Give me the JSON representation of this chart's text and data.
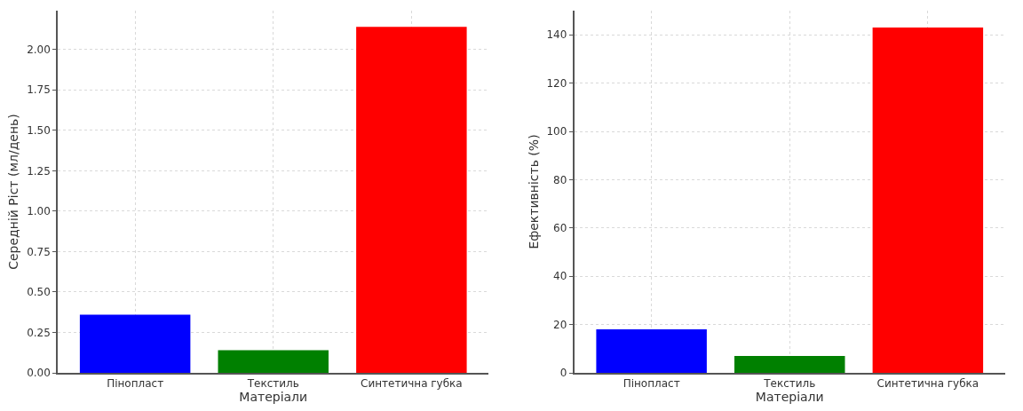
{
  "chart_data": [
    {
      "type": "bar",
      "xlabel": "Матеріали",
      "ylabel": "Середній Ріст (мл/день)",
      "categories": [
        "Пінопласт",
        "Текстиль",
        "Синтетична губка"
      ],
      "values": [
        0.36,
        0.14,
        2.14
      ],
      "colors": [
        "#0000ff",
        "#008000",
        "#ff0000"
      ],
      "ylim": [
        0,
        2.24
      ],
      "yticks": [
        {
          "value": 0,
          "label": "0.00"
        },
        0.25,
        {
          "value": 0.5,
          "label": "0.50"
        },
        0.75,
        {
          "value": 1,
          "label": "1.00"
        },
        1.25,
        {
          "value": 1.5,
          "label": "1.50"
        },
        1.75,
        {
          "value": 2,
          "label": "2.00"
        }
      ],
      "grid": true
    },
    {
      "type": "bar",
      "xlabel": "Матеріали",
      "ylabel": "Ефективність (%)",
      "categories": [
        "Пінопласт",
        "Текстиль",
        "Синтетична губка"
      ],
      "values": [
        18,
        7,
        143
      ],
      "colors": [
        "#0000ff",
        "#008000",
        "#ff0000"
      ],
      "ylim": [
        0,
        150
      ],
      "yticks": [
        0,
        20,
        40,
        60,
        80,
        100,
        120,
        140
      ],
      "grid": true
    }
  ]
}
